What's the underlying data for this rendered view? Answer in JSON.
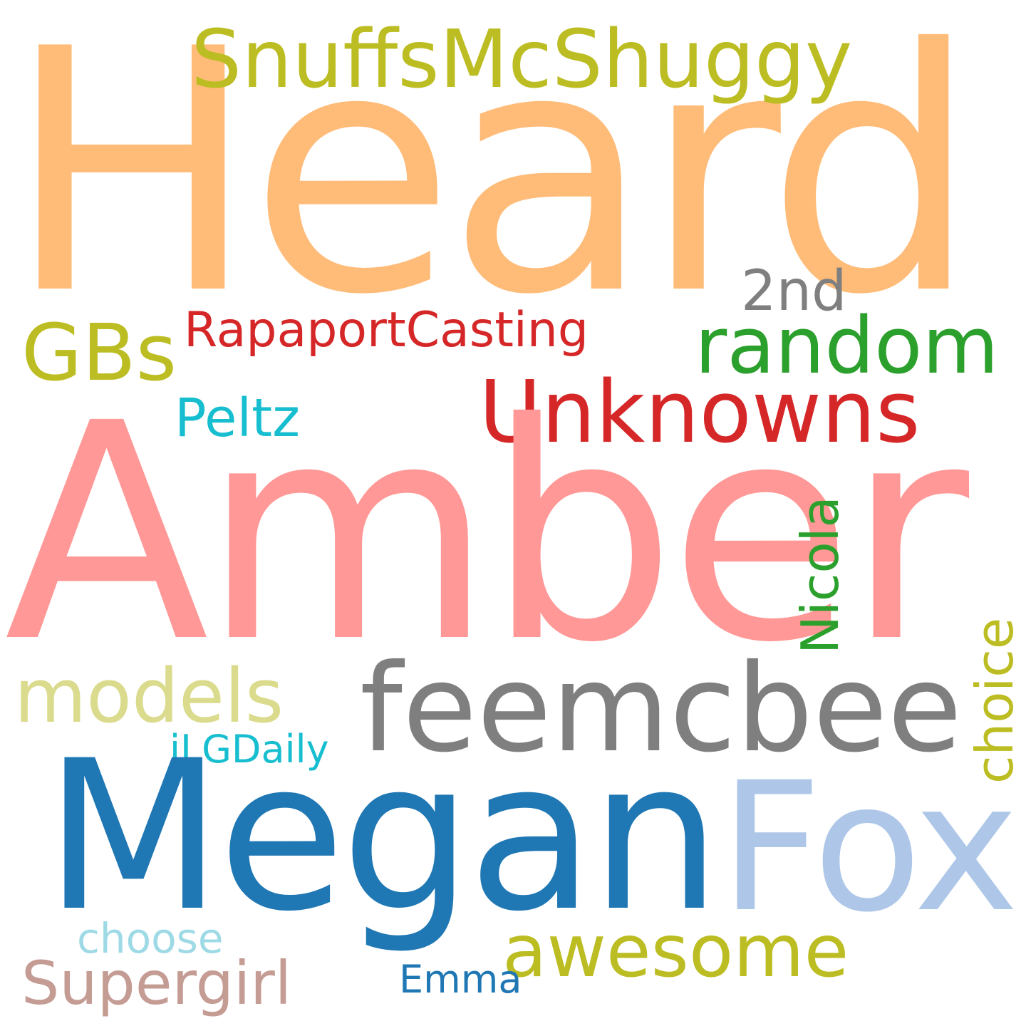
{
  "words": {
    "heard": {
      "text": "Heard",
      "color": "#ffbb78"
    },
    "amber": {
      "text": "Amber",
      "color": "#ff9896"
    },
    "megan": {
      "text": "Megan",
      "color": "#1f77b4"
    },
    "fox": {
      "text": "Fox",
      "color": "#aec7e8"
    },
    "feemcbee": {
      "text": "feemcbee",
      "color": "#7f7f7f"
    },
    "snuffs": {
      "text": "SnuffsMcShuggy",
      "color": "#bcbd22"
    },
    "unknowns": {
      "text": "Unknowns",
      "color": "#d62728"
    },
    "random": {
      "text": "random",
      "color": "#2ca02c"
    },
    "gbs": {
      "text": "GBs",
      "color": "#bcbd22"
    },
    "rapaport": {
      "text": "RapaportCasting",
      "color": "#d62728"
    },
    "second": {
      "text": "2nd",
      "color": "#7f7f7f"
    },
    "peltz": {
      "text": "Peltz",
      "color": "#17becf"
    },
    "models": {
      "text": "models",
      "color": "#dbdb8d"
    },
    "nicola": {
      "text": "Nicola",
      "color": "#2ca02c"
    },
    "choice": {
      "text": "choice",
      "color": "#bcbd22"
    },
    "ilgdaily": {
      "text": "iLGDaily",
      "color": "#17becf"
    },
    "awesome": {
      "text": "awesome",
      "color": "#bcbd22"
    },
    "choose": {
      "text": "choose",
      "color": "#9edae5"
    },
    "supergirl": {
      "text": "Supergirl",
      "color": "#c49c94"
    },
    "emma": {
      "text": "Emma",
      "color": "#1f77b4"
    }
  }
}
